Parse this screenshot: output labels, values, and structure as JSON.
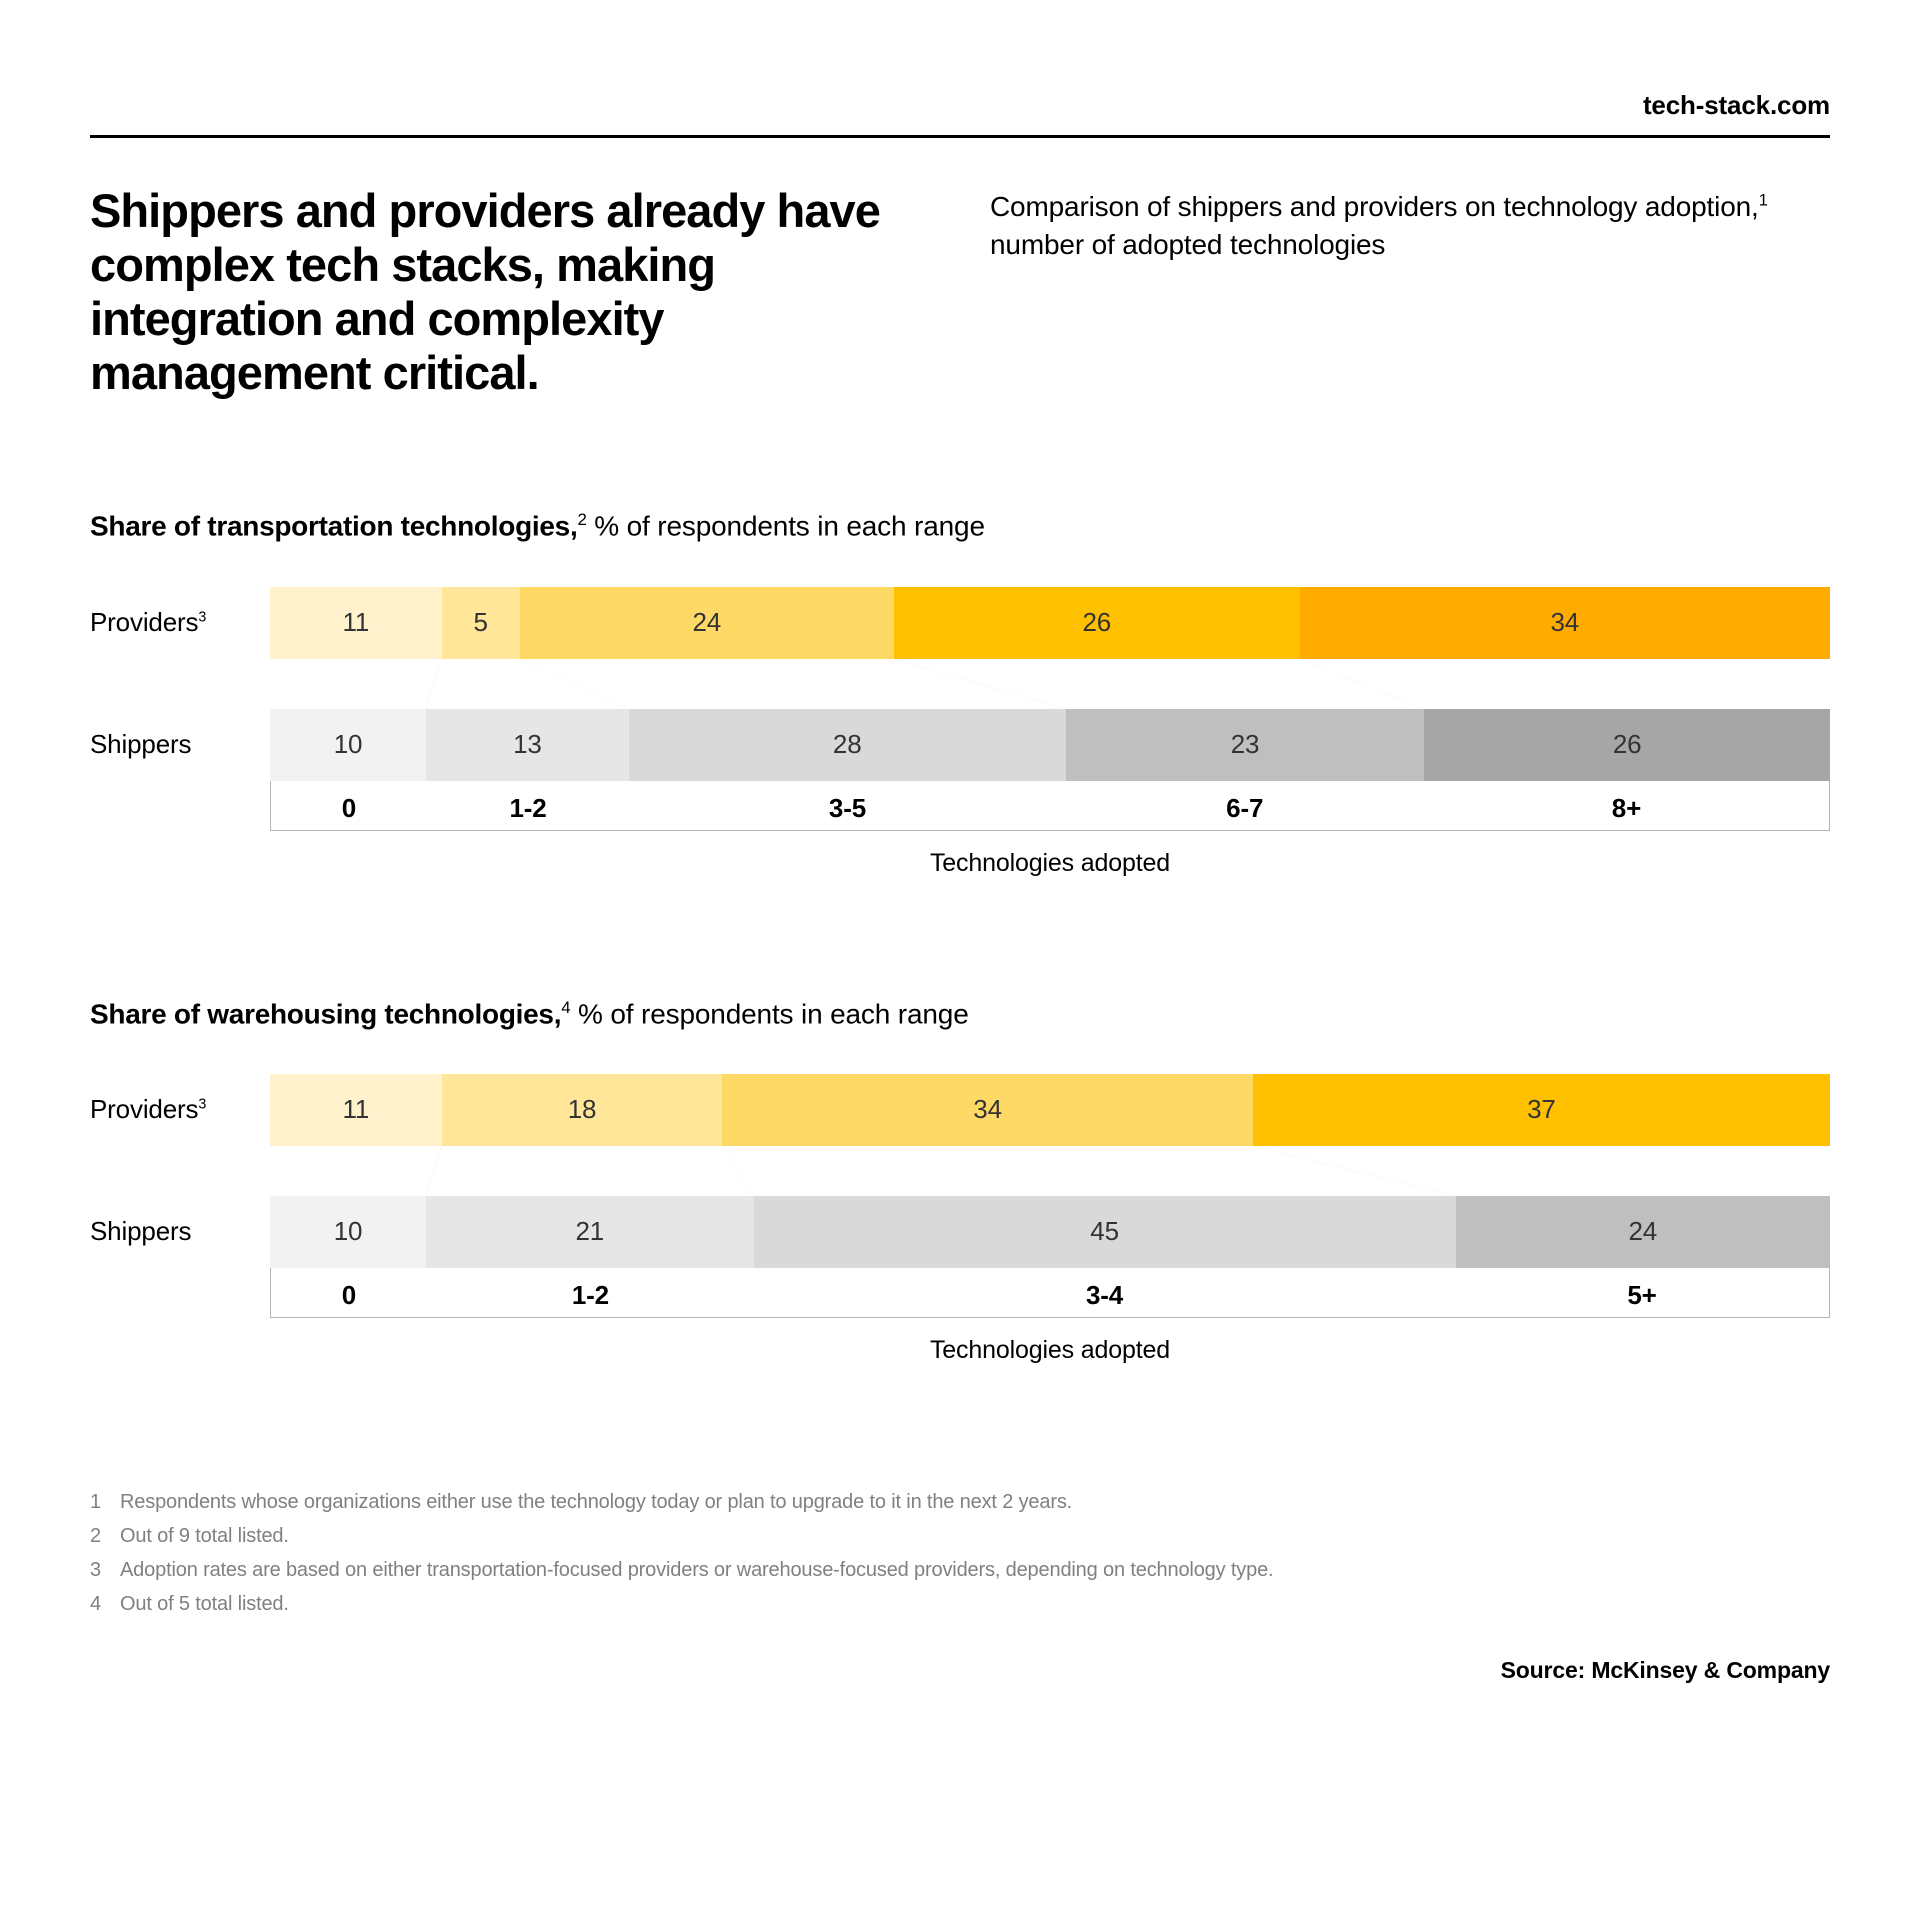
{
  "site": "tech-stack.com",
  "headline": "Shippers and providers already have complex tech stacks, making integration and complexity management critical.",
  "subhead_pre": "Comparison of shippers and providers on technology adoption,",
  "subhead_sup": "1",
  "subhead_post": " number of adopted technologies",
  "palette_providers": [
    "#fff2cc",
    "#ffe699",
    "#ffd966",
    "#ffc000",
    "#ffab00"
  ],
  "palette_shippers": [
    "#f2f2f2",
    "#e6e6e6",
    "#d9d9d9",
    "#bfbfbf",
    "#a6a6a6"
  ],
  "seg_text_color": "#333333",
  "connector_stroke": "#b3b3b3",
  "chart1": {
    "title_bold": "Share of transportation technologies,",
    "title_sup": "2",
    "title_rest": " % of respondents in each range",
    "row1_label": "Providers",
    "row1_sup": "3",
    "row2_label": "Shippers",
    "axis_label": "Technologies adopted",
    "categories": [
      "0",
      "1-2",
      "3-5",
      "6-7",
      "8+"
    ],
    "providers": [
      11,
      5,
      24,
      26,
      34
    ],
    "shippers": [
      10,
      13,
      28,
      23,
      26
    ]
  },
  "chart2": {
    "title_bold": "Share of warehousing technologies,",
    "title_sup": "4",
    "title_rest": " % of respondents in each range",
    "row1_label": "Providers",
    "row1_sup": "3",
    "row2_label": "Shippers",
    "axis_label": "Technologies adopted",
    "categories": [
      "0",
      "1-2",
      "3-4",
      "5+"
    ],
    "providers": [
      11,
      18,
      34,
      37
    ],
    "shippers": [
      10,
      21,
      45,
      24
    ]
  },
  "footnotes": [
    {
      "n": "1",
      "t": "Respondents whose organizations either use the technology today or plan to upgrade to it in the next 2 years."
    },
    {
      "n": "2",
      "t": "Out of 9 total listed."
    },
    {
      "n": "3",
      "t": "Adoption rates are based on either transportation-focused providers or warehouse-focused providers, depending on technology type."
    },
    {
      "n": "4",
      "t": "Out of 5 total listed."
    }
  ],
  "source": "Source: McKinsey & Company"
}
